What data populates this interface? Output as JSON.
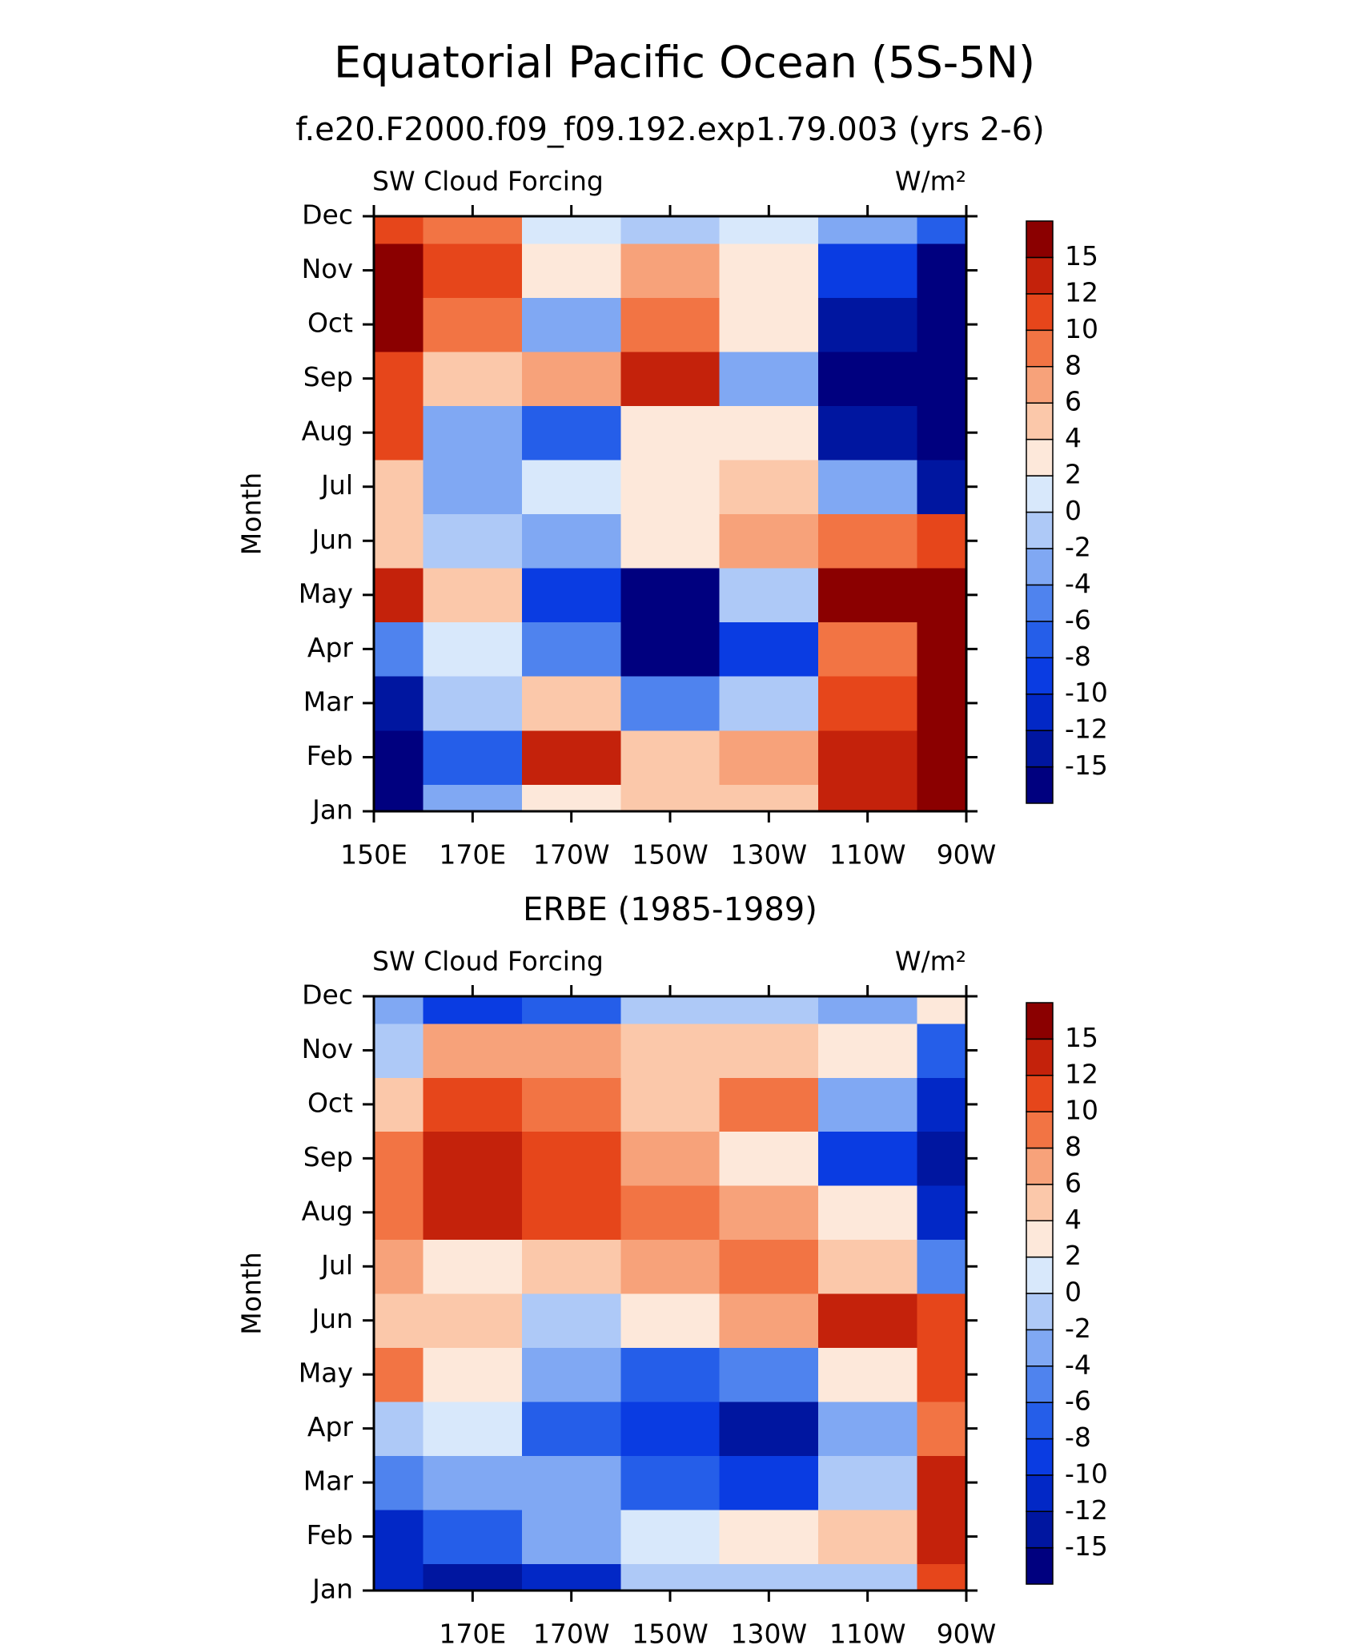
{
  "title": "Equatorial Pacific Ocean (5S-5N)",
  "chart_data": [
    {
      "type": "contour",
      "title": "f.e20.F2000.f09_f09.192.exp1.79.003 (yrs 2-6)",
      "left_label": "SW Cloud Forcing",
      "right_label": "W/m²",
      "y_label": "Month",
      "x": [
        150,
        170,
        190,
        210,
        230,
        250,
        270
      ],
      "xlim": [
        150,
        270
      ],
      "xticks": [
        {
          "value": 150,
          "label": "150E"
        },
        {
          "value": 170,
          "label": "170E"
        },
        {
          "value": 190,
          "label": "170W"
        },
        {
          "value": 210,
          "label": "150W"
        },
        {
          "value": 230,
          "label": "130W"
        },
        {
          "value": 250,
          "label": "110W"
        },
        {
          "value": 270,
          "label": "90W"
        }
      ],
      "categories": [
        "Jan",
        "Feb",
        "Mar",
        "Apr",
        "May",
        "Jun",
        "Jul",
        "Aug",
        "Sep",
        "Oct",
        "Nov",
        "Dec"
      ],
      "z": [
        [
          -16,
          -3,
          3,
          4,
          4,
          14,
          18
        ],
        [
          -16,
          -8,
          12,
          4,
          6,
          14,
          18
        ],
        [
          -14,
          -2,
          4,
          -6,
          -2,
          10,
          18
        ],
        [
          -6,
          1,
          -6,
          -16,
          -10,
          8,
          18
        ],
        [
          14,
          4,
          -10,
          -16,
          -2,
          16,
          18
        ],
        [
          4,
          -2,
          -3,
          3,
          6,
          9,
          11
        ],
        [
          4,
          -4,
          0,
          2,
          4,
          -4,
          -14
        ],
        [
          10,
          -4,
          -8,
          3,
          2,
          -14,
          -17
        ],
        [
          10,
          4,
          6,
          14,
          -4,
          -16,
          -17
        ],
        [
          15,
          8,
          -4,
          8,
          2,
          -14,
          -17
        ],
        [
          16,
          10,
          2,
          7,
          2,
          -10,
          -17
        ],
        [
          10,
          8,
          0,
          -2,
          0,
          -4,
          -8
        ]
      ],
      "levels": [
        -15,
        -12,
        -10,
        -8,
        -6,
        -4,
        -2,
        0,
        2,
        4,
        6,
        8,
        10,
        12,
        15
      ],
      "colors": [
        "#00007f",
        "#0016a0",
        "#0228c6",
        "#0a3ce2",
        "#255ee9",
        "#4f83ee",
        "#80a8f3",
        "#aec9f7",
        "#d8e8fb",
        "#fde8da",
        "#fbc8aa",
        "#f7a27a",
        "#f27444",
        "#e6461b",
        "#c4220b",
        "#8b0000"
      ]
    },
    {
      "type": "contour",
      "title": "ERBE (1985-1989)",
      "left_label": "SW Cloud Forcing",
      "right_label": "W/m²",
      "y_label": "Month",
      "x": [
        150,
        170,
        190,
        210,
        230,
        250,
        270
      ],
      "xlim": [
        150,
        270
      ],
      "xticks": [
        {
          "value": 170,
          "label": "170E"
        },
        {
          "value": 190,
          "label": "170W"
        },
        {
          "value": 210,
          "label": "150W"
        },
        {
          "value": 230,
          "label": "130W"
        },
        {
          "value": 250,
          "label": "110W"
        },
        {
          "value": 270,
          "label": "90W"
        }
      ],
      "categories": [
        "Jan",
        "Feb",
        "Mar",
        "Apr",
        "May",
        "Jun",
        "Jul",
        "Aug",
        "Sep",
        "Oct",
        "Nov",
        "Dec"
      ],
      "z": [
        [
          -12,
          -14,
          -12,
          -2,
          -2,
          -2,
          10
        ],
        [
          -12,
          -8,
          -4,
          0,
          2,
          4,
          14
        ],
        [
          -6,
          -4,
          -4,
          -8,
          -10,
          -2,
          14
        ],
        [
          -2,
          0,
          -8,
          -10,
          -14,
          -4,
          8
        ],
        [
          8,
          2,
          -4,
          -8,
          -6,
          2,
          10
        ],
        [
          4,
          4,
          -2,
          2,
          6,
          12,
          10
        ],
        [
          6,
          2,
          4,
          6,
          8,
          4,
          -6
        ],
        [
          8,
          14,
          10,
          8,
          6,
          2,
          -12
        ],
        [
          8,
          12,
          10,
          6,
          2,
          -10,
          -14
        ],
        [
          4,
          10,
          8,
          4,
          8,
          -4,
          -12
        ],
        [
          -2,
          6,
          6,
          4,
          4,
          2,
          -8
        ],
        [
          -4,
          -10,
          -8,
          -2,
          -2,
          -4,
          2
        ]
      ],
      "levels": [
        -15,
        -12,
        -10,
        -8,
        -6,
        -4,
        -2,
        0,
        2,
        4,
        6,
        8,
        10,
        12,
        15
      ],
      "colors": [
        "#00007f",
        "#0016a0",
        "#0228c6",
        "#0a3ce2",
        "#255ee9",
        "#4f83ee",
        "#80a8f3",
        "#aec9f7",
        "#d8e8fb",
        "#fde8da",
        "#fbc8aa",
        "#f7a27a",
        "#f27444",
        "#e6461b",
        "#c4220b",
        "#8b0000"
      ]
    }
  ]
}
